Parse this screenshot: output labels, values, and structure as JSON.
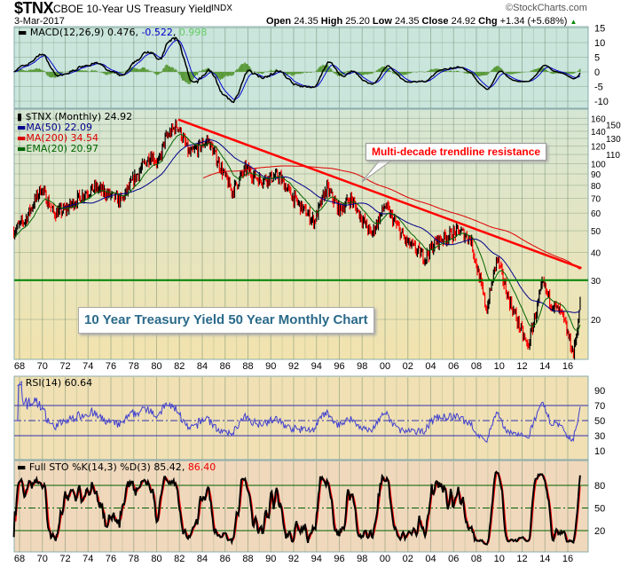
{
  "header": {
    "symbol": "$TNX",
    "name": "CBOE 10-Year US Treasury Yield",
    "exchange": "INDX",
    "date": "3-Mar-2017",
    "watermark": "©StockCharts.com",
    "open_label": "Open",
    "open": "24.35",
    "high_label": "High",
    "high": "25.20",
    "low_label": "Low",
    "low": "24.35",
    "close_label": "Close",
    "close": "24.92",
    "chg_label": "Chg",
    "chg": "+1.34 (+5.68%)"
  },
  "colors": {
    "macd_bg": "#c9e5dc",
    "main_bg_top": "#d6e6d4",
    "main_bg_bottom": "#f2e3ae",
    "rsi_bg": "#f0e0b4",
    "sto_bg": "#f0d8bc",
    "up": "#000000",
    "down": "#ff0000",
    "ma50": "#00008b",
    "ma200": "#dd0000",
    "ema20": "#006400",
    "trend": "#ff0000",
    "support": "#008000",
    "rsi": "#4040d0"
  },
  "chart_data": [
    {
      "type": "line",
      "panel": "macd",
      "title": "MACD(12,26,9)",
      "values": [
        "0.476",
        "-0.522",
        "0.998"
      ],
      "yticks": [
        15,
        10,
        5,
        0,
        -5,
        -10
      ],
      "ylim": [
        -11,
        15
      ]
    },
    {
      "type": "ohlc",
      "panel": "price",
      "title": "$TNX (Monthly) 24.92",
      "scale": "log",
      "legend": [
        {
          "label": "MA(50) 22.09"
        },
        {
          "label": "MA(200) 34.54"
        },
        {
          "label": "EMA(20) 20.97"
        }
      ],
      "yticks": [
        160,
        150,
        140,
        130,
        120,
        110,
        100,
        90,
        80,
        70,
        60,
        50,
        40,
        30,
        20
      ],
      "xticks": [
        "68",
        "70",
        "72",
        "74",
        "76",
        "78",
        "80",
        "82",
        "84",
        "86",
        "88",
        "90",
        "92",
        "94",
        "96",
        "98",
        "00",
        "02",
        "04",
        "06",
        "08",
        "10",
        "12",
        "14",
        "16"
      ],
      "x_range": [
        1967.5,
        2017.2
      ],
      "keypoints": {
        "x": [
          1967.5,
          1968.5,
          1969.9,
          1971.0,
          1972.0,
          1973.7,
          1974.7,
          1976.9,
          1978.0,
          1979.5,
          1980.2,
          1980.7,
          1981.8,
          1982.9,
          1984.5,
          1986.6,
          1987.8,
          1989.0,
          1990.7,
          1992.0,
          1993.8,
          1994.9,
          1996.0,
          1997.0,
          1998.8,
          2000.0,
          2001.8,
          2003.5,
          2004.5,
          2006.5,
          2007.5,
          2008.9,
          2009.8,
          2010.8,
          2012.5,
          2013.8,
          2014.5,
          2015.5,
          2016.5,
          2017.2
        ],
        "y": [
          50,
          56,
          78,
          60,
          62,
          74,
          78,
          68,
          85,
          110,
          100,
          128,
          150,
          110,
          128,
          75,
          95,
          85,
          88,
          70,
          55,
          78,
          62,
          70,
          48,
          65,
          45,
          38,
          45,
          50,
          46,
          22,
          38,
          25,
          15,
          29,
          24,
          21,
          14,
          24.92
        ]
      },
      "annotations": [
        "Multi-decade trendline resistance",
        "10 Year Treasury Yield 50 Year Monthly Chart"
      ],
      "trendline": {
        "from": [
          1981.9,
          158
        ],
        "to": [
          2017.2,
          34
        ]
      },
      "support_level": 30
    },
    {
      "type": "line",
      "panel": "rsi",
      "title": "RSI(14) 60.64",
      "yticks": [
        90,
        70,
        50,
        30,
        10
      ],
      "levels": [
        70,
        50,
        30
      ],
      "ylim": [
        0,
        100
      ]
    },
    {
      "type": "line",
      "panel": "sto",
      "title": "Full STO %K(14,3) %D(3)",
      "values": [
        "85.42",
        "86.40"
      ],
      "yticks": [
        80,
        50,
        20
      ],
      "levels": [
        80,
        50,
        20
      ],
      "ylim": [
        0,
        100
      ]
    }
  ]
}
